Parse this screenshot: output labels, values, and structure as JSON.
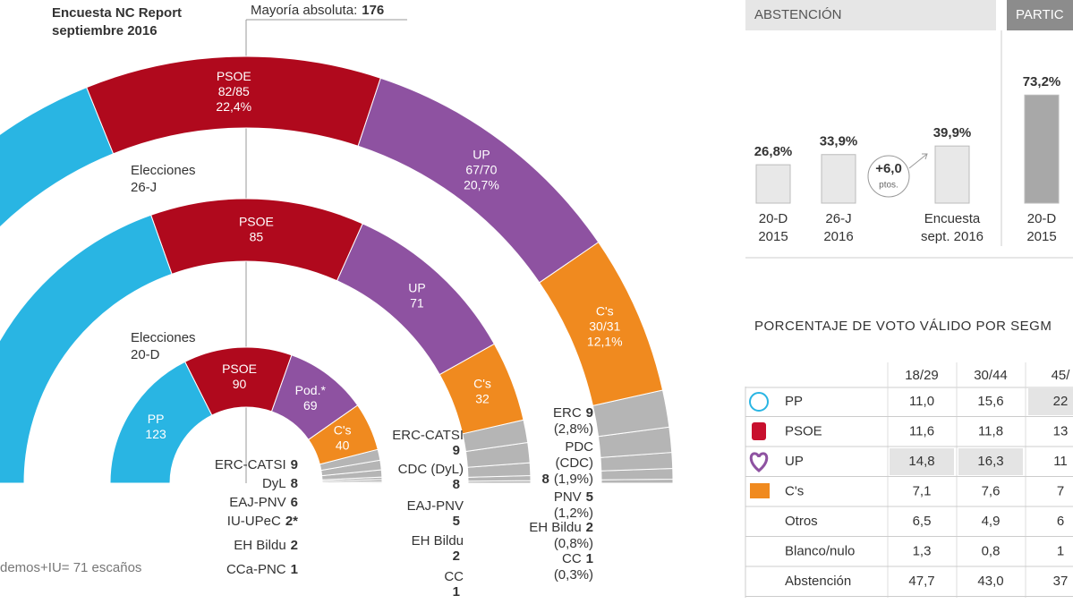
{
  "header": {
    "title": [
      "Encuesta NC Report",
      "septiembre 2016"
    ],
    "majority_label": "Mayoría absoluta:",
    "majority_value": 176
  },
  "hemicycle": {
    "pp_color": "#29b5e3",
    "minor_color": "#b5b5b5",
    "survey": {
      "segments": [
        {
          "name": "PSOE",
          "seats": "82/85",
          "share": {
            "value": 22.4,
            "label": "22,4%"
          },
          "color": "#b0091d"
        },
        {
          "name": "UP",
          "seats": "67/70",
          "share": {
            "value": 20.7,
            "label": "20,7%"
          },
          "color": "#8e52a1"
        },
        {
          "name": "C's",
          "seats": "30/31",
          "share": {
            "value": 12.1,
            "label": "12,1%"
          },
          "color": "#f08a1f"
        }
      ],
      "minor": [
        {
          "name": [
            "ERC"
          ],
          "seats": 9,
          "share": {
            "value": 2.8,
            "label": "(2,8%)"
          }
        },
        {
          "name": [
            "PDC",
            "(CDC)"
          ],
          "seats": 8,
          "share": {
            "value": 1.9,
            "label": "(1,9%)"
          }
        },
        {
          "name": [
            "PNV"
          ],
          "seats": 5,
          "share": {
            "value": 1.2,
            "label": "(1,2%)"
          }
        },
        {
          "name": [
            "EH Bildu"
          ],
          "seats": 2,
          "share": {
            "value": 0.8,
            "label": "(0,8%)"
          }
        },
        {
          "name": [
            "CC"
          ],
          "seats": 1,
          "share": {
            "value": 0.3,
            "label": "(0,3%)"
          }
        }
      ]
    },
    "elections_26j": {
      "caption": [
        "Elecciones",
        "26-J"
      ],
      "segments": [
        {
          "name": "PSOE",
          "seats": 85,
          "color": "#b0091d"
        },
        {
          "name": "UP",
          "seats": 71,
          "color": "#8e52a1"
        },
        {
          "name": "C's",
          "seats": 32,
          "color": "#f08a1f"
        }
      ],
      "minor": [
        {
          "name": "ERC-CATSI",
          "seats": 9
        },
        {
          "name": "CDC (DyL)",
          "seats": 8
        },
        {
          "name": "EAJ-PNV",
          "seats": 5
        },
        {
          "name": "EH Bildu",
          "seats": 2
        },
        {
          "name": "CC",
          "seats": 1
        }
      ]
    },
    "elections_20d": {
      "caption": [
        "Elecciones",
        "20-D"
      ],
      "segments": [
        {
          "name": "PP",
          "seats": 123,
          "color": "#29b5e3"
        },
        {
          "name": "PSOE",
          "seats": 90,
          "color": "#b0091d"
        },
        {
          "name": "Pod.*",
          "seats": 69,
          "color": "#8e52a1"
        },
        {
          "name": "C's",
          "seats": 40,
          "color": "#f08a1f"
        }
      ],
      "minor": [
        {
          "name": "ERC-CATSI",
          "seats": 9
        },
        {
          "name": "DyL",
          "seats": 8
        },
        {
          "name": "EAJ-PNV",
          "seats": 6
        },
        {
          "name": "IU-UPeC",
          "seats": {
            "value": 2,
            "label": "2*"
          }
        },
        {
          "name": "EH Bildu",
          "seats": 2
        },
        {
          "name": "CCa-PNC",
          "seats": 1
        }
      ]
    },
    "footnote": "demos+IU= 71 escaños"
  },
  "abstention": {
    "title": "ABSTENCIÓN",
    "bars": [
      {
        "value": 26.8,
        "label": "26,8%",
        "period": [
          "20-D",
          "2015"
        ]
      },
      {
        "value": 33.9,
        "label": "33,9%",
        "period": [
          "26-J",
          "2016"
        ]
      },
      {
        "value": 39.9,
        "label": "39,9%",
        "period": [
          "Encuesta",
          "sept. 2016"
        ]
      }
    ],
    "change": "+6,0",
    "change_unit": "ptos."
  },
  "participation": {
    "title": "PARTIC",
    "bars": [
      {
        "value": 73.2,
        "label": "73,2%",
        "period": [
          "20-D",
          "2015"
        ]
      }
    ]
  },
  "segment_table": {
    "title": "PORCENTAJE DE VOTO VÁLIDO POR SEGM",
    "columns": [
      "18/29",
      "30/44",
      "45/"
    ],
    "rows": [
      {
        "label": "PP",
        "cells": [
          "11,0",
          "15,6",
          "22"
        ],
        "highlight": [
          2
        ]
      },
      {
        "label": "PSOE",
        "cells": [
          "11,6",
          "11,8",
          "13"
        ]
      },
      {
        "label": "UP",
        "cells": [
          "14,8",
          "16,3",
          "11"
        ],
        "highlight": [
          0,
          1
        ]
      },
      {
        "label": "C's",
        "cells": [
          "7,1",
          "7,6",
          "7"
        ]
      },
      {
        "label": "Otros",
        "cells": [
          "6,5",
          "4,9",
          "6"
        ]
      },
      {
        "label": "Blanco/nulo",
        "cells": [
          "1,3",
          "0,8",
          "1"
        ]
      },
      {
        "label": "Abstención",
        "cells": [
          "47,7",
          "43,0",
          "37"
        ]
      }
    ]
  }
}
